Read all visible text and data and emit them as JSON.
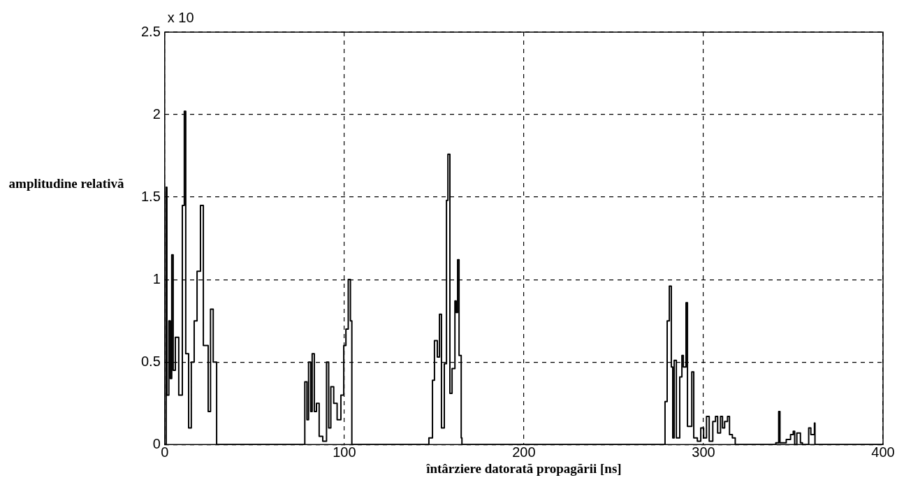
{
  "chart_data": {
    "type": "step",
    "xlabel": "întârziere datorată propagării [ns]",
    "ylabel": "amplitudine relativă",
    "annotations": [
      "x 10"
    ],
    "xlim": [
      0,
      400
    ],
    "xticks": [
      0,
      100,
      200,
      300,
      400
    ],
    "ylim": [
      0,
      2.5
    ],
    "yticks": [
      0,
      0.5,
      1,
      1.5,
      2,
      2.5
    ],
    "grid": true,
    "legend": false,
    "marker": "none",
    "line_style": "solid",
    "series": [
      {
        "color": "#000000",
        "x": [
          0,
          0.8,
          1.2,
          2.3,
          3.1,
          3.9,
          4.7,
          5.9,
          7.8,
          9.8,
          10.9,
          11.7,
          13.3,
          14.8,
          16.4,
          18,
          19.9,
          21.5,
          24.2,
          25.5,
          27,
          28.9,
          78,
          79.2,
          80.1,
          81.3,
          82.1,
          83.3,
          84.5,
          86,
          88,
          90.1,
          91.3,
          92.5,
          94.1,
          96,
          98.1,
          99.7,
          100.9,
          102.2,
          103.4,
          104.2,
          147.1,
          149.1,
          150.2,
          151.8,
          153,
          154.1,
          155.7,
          156.9,
          157.7,
          158.8,
          160,
          161.6,
          162.3,
          163.1,
          163.9,
          165.1,
          165.5,
          278.6,
          279.8,
          281,
          282.1,
          282.9,
          283.7,
          284.9,
          286.8,
          288,
          288.8,
          290.3,
          291.1,
          293.5,
          294.6,
          296.6,
          298.5,
          300.1,
          301.7,
          303.2,
          305.2,
          306.7,
          307.9,
          309.5,
          310.6,
          311.8,
          313.4,
          314.5,
          316.1,
          317.7,
          340.3,
          341.9,
          342.6,
          346.1,
          348.5,
          350,
          350.8,
          352,
          354,
          355.1,
          358.6,
          359.8,
          361.8,
          362.1,
          400
        ],
        "values": [
          0,
          1.56,
          0.3,
          0.75,
          0.4,
          1.15,
          0.45,
          0.65,
          0.3,
          1.45,
          2.02,
          0.55,
          0.1,
          0.5,
          0.75,
          1.05,
          1.45,
          0.6,
          0.2,
          0.82,
          0.5,
          0,
          0.38,
          0.15,
          0.5,
          0.2,
          0.55,
          0.2,
          0.25,
          0.05,
          0.02,
          0.5,
          0.1,
          0.35,
          0.25,
          0.15,
          0.3,
          0.6,
          0.7,
          1.0,
          0.75,
          0,
          0.04,
          0.39,
          0.63,
          0.53,
          0.79,
          0.1,
          0.49,
          1.48,
          1.76,
          0.31,
          0.46,
          0.87,
          0.8,
          1.12,
          0.54,
          0.04,
          0,
          0.26,
          0.75,
          0.96,
          0.47,
          0.04,
          0.51,
          0.04,
          0.41,
          0.54,
          0.47,
          0.86,
          0.11,
          0.44,
          0.04,
          0.02,
          0.1,
          0.04,
          0.17,
          0.02,
          0.14,
          0.17,
          0.07,
          0.17,
          0.1,
          0.14,
          0.17,
          0.06,
          0.04,
          0,
          0.01,
          0.2,
          0.01,
          0.03,
          0.06,
          0.08,
          0,
          0.07,
          0.01,
          0,
          0.1,
          0.06,
          0.13,
          0,
          0
        ]
      }
    ]
  }
}
